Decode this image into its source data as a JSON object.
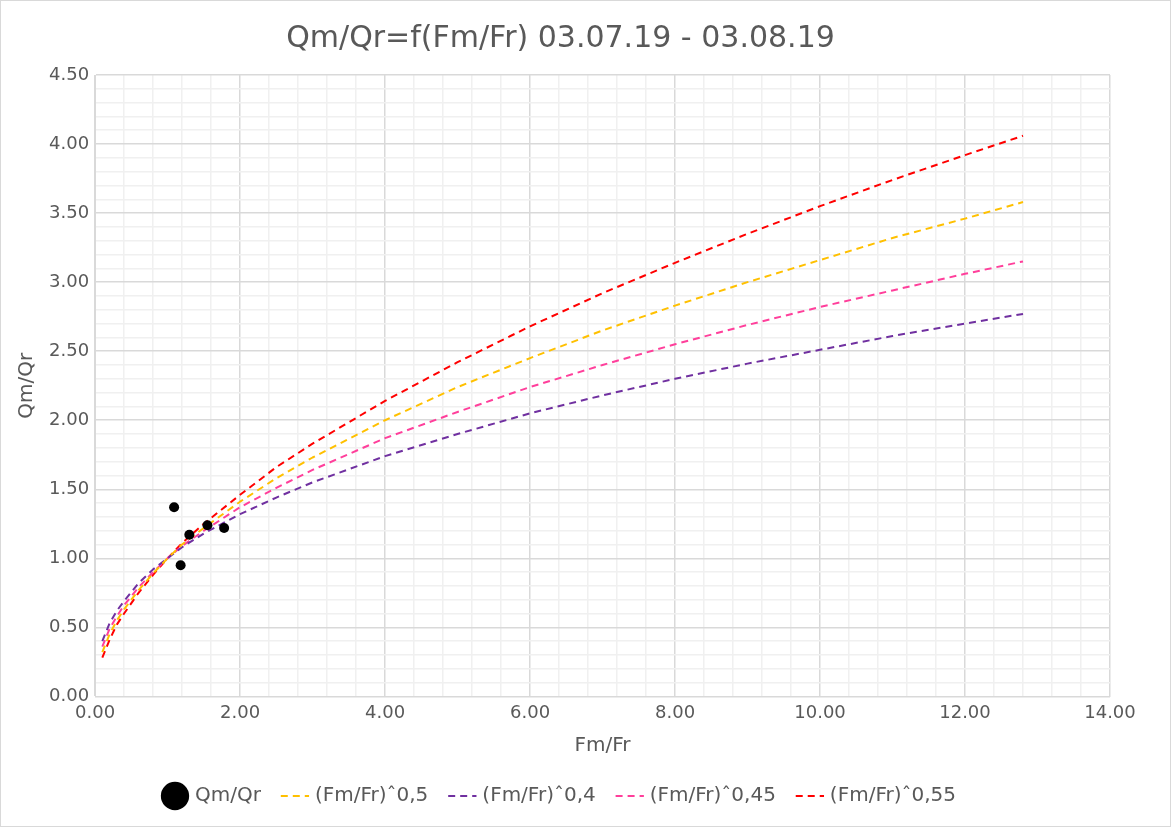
{
  "chart_data": {
    "type": "line",
    "title": "Qm/Qr=f(Fm/Fr) 03.07.19 - 03.08.19",
    "xlabel": "Fm/Fr",
    "ylabel": "Qm/Qr",
    "xlim": [
      0,
      14
    ],
    "ylim": [
      0,
      4.5
    ],
    "xticks": [
      {
        "value": 0,
        "label": "0.00"
      },
      {
        "value": 0.4,
        "label": null
      },
      {
        "value": 0.8,
        "label": null
      },
      {
        "value": 1.2,
        "label": null
      },
      {
        "value": 1.6,
        "label": null
      },
      {
        "value": 2,
        "label": "2.00"
      },
      {
        "value": 2.4,
        "label": null
      },
      {
        "value": 2.8,
        "label": null
      },
      {
        "value": 3.2,
        "label": null
      },
      {
        "value": 3.6,
        "label": null
      },
      {
        "value": 4,
        "label": "4.00"
      },
      {
        "value": 4.4,
        "label": null
      },
      {
        "value": 4.8,
        "label": null
      },
      {
        "value": 5.2,
        "label": null
      },
      {
        "value": 5.6,
        "label": null
      },
      {
        "value": 6,
        "label": "6.00"
      },
      {
        "value": 6.4,
        "label": null
      },
      {
        "value": 6.8,
        "label": null
      },
      {
        "value": 7.2,
        "label": null
      },
      {
        "value": 7.6,
        "label": null
      },
      {
        "value": 8,
        "label": "8.00"
      },
      {
        "value": 8.4,
        "label": null
      },
      {
        "value": 8.8,
        "label": null
      },
      {
        "value": 9.2,
        "label": null
      },
      {
        "value": 9.6,
        "label": null
      },
      {
        "value": 10,
        "label": "10.00"
      },
      {
        "value": 10.4,
        "label": null
      },
      {
        "value": 10.8,
        "label": null
      },
      {
        "value": 11.2,
        "label": null
      },
      {
        "value": 11.6,
        "label": null
      },
      {
        "value": 12,
        "label": "12.00"
      },
      {
        "value": 12.4,
        "label": null
      },
      {
        "value": 12.8,
        "label": null
      },
      {
        "value": 13.2,
        "label": null
      },
      {
        "value": 13.6,
        "label": null
      },
      {
        "value": 14,
        "label": "14.00"
      }
    ],
    "yticks": [
      {
        "value": 0,
        "label": "0.00"
      },
      {
        "value": 0.1,
        "label": null
      },
      {
        "value": 0.2,
        "label": null
      },
      {
        "value": 0.3,
        "label": null
      },
      {
        "value": 0.4,
        "label": null
      },
      {
        "value": 0.5,
        "label": "0.50"
      },
      {
        "value": 0.6,
        "label": null
      },
      {
        "value": 0.7,
        "label": null
      },
      {
        "value": 0.8,
        "label": null
      },
      {
        "value": 0.9,
        "label": null
      },
      {
        "value": 1,
        "label": "1.00"
      },
      {
        "value": 1.1,
        "label": null
      },
      {
        "value": 1.2,
        "label": null
      },
      {
        "value": 1.3,
        "label": null
      },
      {
        "value": 1.4,
        "label": null
      },
      {
        "value": 1.5,
        "label": "1.50"
      },
      {
        "value": 1.6,
        "label": null
      },
      {
        "value": 1.7,
        "label": null
      },
      {
        "value": 1.8,
        "label": null
      },
      {
        "value": 1.9,
        "label": null
      },
      {
        "value": 2,
        "label": "2.00"
      },
      {
        "value": 2.1,
        "label": null
      },
      {
        "value": 2.2,
        "label": null
      },
      {
        "value": 2.3,
        "label": null
      },
      {
        "value": 2.4,
        "label": null
      },
      {
        "value": 2.5,
        "label": "2.50"
      },
      {
        "value": 2.6,
        "label": null
      },
      {
        "value": 2.7,
        "label": null
      },
      {
        "value": 2.8,
        "label": null
      },
      {
        "value": 2.9,
        "label": null
      },
      {
        "value": 3,
        "label": "3.00"
      },
      {
        "value": 3.1,
        "label": null
      },
      {
        "value": 3.2,
        "label": null
      },
      {
        "value": 3.3,
        "label": null
      },
      {
        "value": 3.4,
        "label": null
      },
      {
        "value": 3.5,
        "label": "3.50"
      },
      {
        "value": 3.6,
        "label": null
      },
      {
        "value": 3.7,
        "label": null
      },
      {
        "value": 3.8,
        "label": null
      },
      {
        "value": 3.9,
        "label": null
      },
      {
        "value": 4,
        "label": "4.00"
      },
      {
        "value": 4.1,
        "label": null
      },
      {
        "value": 4.2,
        "label": null
      },
      {
        "value": 4.3,
        "label": null
      },
      {
        "value": 4.4,
        "label": null
      },
      {
        "value": 4.5,
        "label": "4.50"
      }
    ],
    "grid": true,
    "legend": "bottom",
    "line_style": "dashed",
    "series": [
      {
        "name": "Qm/Qr",
        "type": "scatter",
        "marker": "circle",
        "color": "#000000",
        "x": [
          1.09,
          1.18,
          1.3,
          1.55,
          1.78
        ],
        "values": [
          1.37,
          0.95,
          1.17,
          1.24,
          1.22
        ]
      },
      {
        "name": "(Fm/Fr)ˆ0,5",
        "color": "#ffc000",
        "x": [
          0.1,
          0.2,
          0.3,
          0.4,
          0.6,
          0.8,
          1,
          1.2,
          1.5,
          2,
          2.5,
          3,
          4,
          5,
          6,
          7,
          8,
          9,
          10,
          11,
          12,
          12.8
        ],
        "values": [
          0.32,
          0.45,
          0.55,
          0.63,
          0.77,
          0.89,
          1,
          1.1,
          1.22,
          1.41,
          1.58,
          1.73,
          2,
          2.24,
          2.45,
          2.65,
          2.83,
          3,
          3.16,
          3.32,
          3.46,
          3.58
        ]
      },
      {
        "name": "(Fm/Fr)ˆ0,4",
        "color": "#7030a0",
        "x": [
          0.1,
          0.2,
          0.3,
          0.4,
          0.6,
          0.8,
          1,
          1.2,
          1.5,
          2,
          2.5,
          3,
          4,
          5,
          6,
          7,
          8,
          9,
          10,
          11,
          12,
          12.8
        ],
        "values": [
          0.4,
          0.53,
          0.62,
          0.69,
          0.82,
          0.92,
          1,
          1.08,
          1.18,
          1.32,
          1.44,
          1.55,
          1.74,
          1.9,
          2.05,
          2.18,
          2.3,
          2.41,
          2.51,
          2.61,
          2.7,
          2.77
        ]
      },
      {
        "name": "(Fm/Fr)ˆ0,45",
        "color": "#ff3f9b",
        "x": [
          0.1,
          0.2,
          0.3,
          0.4,
          0.6,
          0.8,
          1,
          1.2,
          1.5,
          2,
          2.5,
          3,
          4,
          5,
          6,
          7,
          8,
          9,
          10,
          11,
          12,
          12.8
        ],
        "values": [
          0.36,
          0.49,
          0.58,
          0.66,
          0.79,
          0.9,
          1,
          1.09,
          1.2,
          1.37,
          1.51,
          1.64,
          1.87,
          2.06,
          2.24,
          2.4,
          2.55,
          2.69,
          2.82,
          2.94,
          3.06,
          3.15
        ]
      },
      {
        "name": "(Fm/Fr)ˆ0,55",
        "color": "#ff0000",
        "x": [
          0.1,
          0.2,
          0.3,
          0.4,
          0.6,
          0.8,
          1,
          1.2,
          1.5,
          2,
          2.5,
          3,
          4,
          5,
          6,
          7,
          8,
          9,
          10,
          11,
          12,
          12.8
        ],
        "values": [
          0.28,
          0.41,
          0.52,
          0.6,
          0.75,
          0.88,
          1,
          1.11,
          1.25,
          1.46,
          1.66,
          1.83,
          2.14,
          2.42,
          2.68,
          2.92,
          3.14,
          3.35,
          3.55,
          3.74,
          3.92,
          4.06
        ]
      }
    ]
  }
}
